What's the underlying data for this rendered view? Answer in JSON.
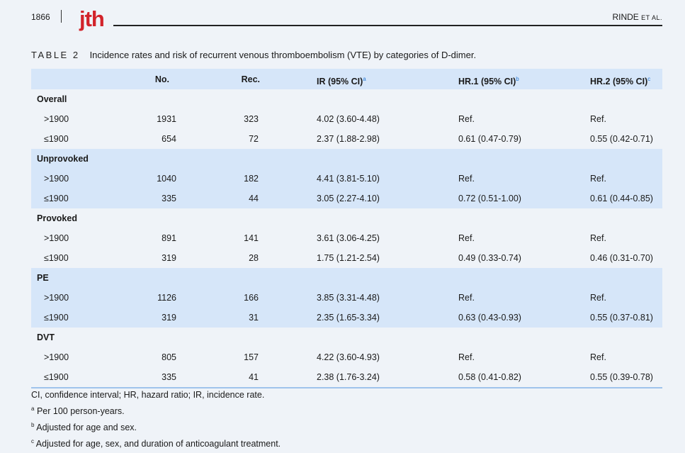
{
  "header": {
    "page_number": "1866",
    "journal_logo": "jth",
    "authors_main": "RINDE",
    "authors_suffix": "ET AL."
  },
  "caption": {
    "label": "TABLE 2",
    "text": "Incidence rates and risk of recurrent venous thromboembolism (VTE) by categories of D-dimer."
  },
  "table": {
    "columns": [
      {
        "label": "",
        "sup": ""
      },
      {
        "label": "No.",
        "sup": ""
      },
      {
        "label": "Rec.",
        "sup": ""
      },
      {
        "label": "IR (95% CI)",
        "sup": "a"
      },
      {
        "label": "HR.1 (95% CI)",
        "sup": "b"
      },
      {
        "label": "HR.2 (95% CI)",
        "sup": "c"
      }
    ],
    "groups": [
      {
        "name": "Overall",
        "rows": [
          [
            ">1900",
            "1931",
            "323",
            "4.02 (3.60-4.48)",
            "Ref.",
            "Ref."
          ],
          [
            "≤1900",
            "654",
            "72",
            "2.37 (1.88-2.98)",
            "0.61 (0.47-0.79)",
            "0.55 (0.42-0.71)"
          ]
        ]
      },
      {
        "name": "Unprovoked",
        "rows": [
          [
            ">1900",
            "1040",
            "182",
            "4.41 (3.81-5.10)",
            "Ref.",
            "Ref."
          ],
          [
            "≤1900",
            "335",
            "44",
            "3.05 (2.27-4.10)",
            "0.72 (0.51-1.00)",
            "0.61 (0.44-0.85)"
          ]
        ]
      },
      {
        "name": "Provoked",
        "rows": [
          [
            ">1900",
            "891",
            "141",
            "3.61 (3.06-4.25)",
            "Ref.",
            "Ref."
          ],
          [
            "≤1900",
            "319",
            "28",
            "1.75 (1.21-2.54)",
            "0.49 (0.33-0.74)",
            "0.46 (0.31-0.70)"
          ]
        ]
      },
      {
        "name": "PE",
        "rows": [
          [
            ">1900",
            "1126",
            "166",
            "3.85 (3.31-4.48)",
            "Ref.",
            "Ref."
          ],
          [
            "≤1900",
            "319",
            "31",
            "2.35 (1.65-3.34)",
            "0.63 (0.43-0.93)",
            "0.55 (0.37-0.81)"
          ]
        ]
      },
      {
        "name": "DVT",
        "rows": [
          [
            ">1900",
            "805",
            "157",
            "4.22 (3.60-4.93)",
            "Ref.",
            "Ref."
          ],
          [
            "≤1900",
            "335",
            "41",
            "2.38 (1.76-3.24)",
            "0.58 (0.41-0.82)",
            "0.55 (0.39-0.78)"
          ]
        ]
      }
    ]
  },
  "footnotes": {
    "abbreviations": "CI, confidence interval; HR, hazard ratio; IR, incidence rate.",
    "notes": [
      {
        "mark": "a",
        "text": "Per 100 person-years."
      },
      {
        "mark": "b",
        "text": "Adjusted for age and sex."
      },
      {
        "mark": "c",
        "text": "Adjusted for age, sex, and duration of anticoagulant treatment."
      }
    ]
  },
  "colors": {
    "logo": "#d2232a",
    "shaded_row": "#d6e6f9",
    "footnote_marker": "#2a7bd5"
  }
}
